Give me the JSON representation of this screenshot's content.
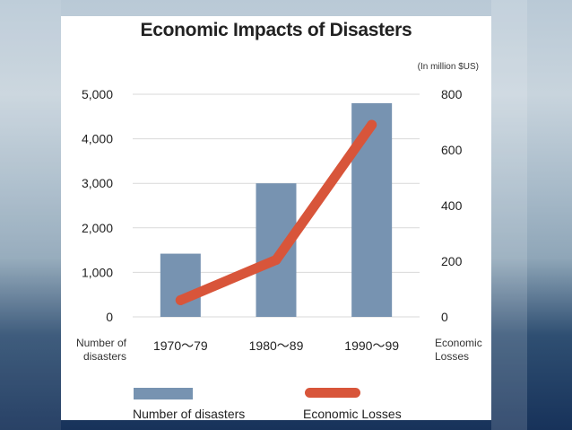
{
  "chart_data": {
    "type": "bar",
    "title": "Economic Impacts of Disasters",
    "unit_note": "(In million $US)",
    "categories": [
      "1970～79",
      "1980～89",
      "1990～99"
    ],
    "series": [
      {
        "name": "Number of disasters",
        "type": "bar",
        "axis": "left",
        "values": [
          1420,
          3000,
          4800
        ]
      },
      {
        "name": "Economic Losses",
        "type": "line",
        "axis": "right",
        "values": [
          60,
          205,
          690
        ]
      }
    ],
    "left_axis": {
      "title": "Number of disasters",
      "ylim": [
        0,
        5000
      ],
      "ticks": [
        0,
        1000,
        2000,
        3000,
        4000,
        5000
      ],
      "tick_labels": [
        "0",
        "1,000",
        "2,000",
        "3,000",
        "4,000",
        "5,000"
      ]
    },
    "right_axis": {
      "title": "Economic Losses",
      "ylim": [
        0,
        800
      ],
      "ticks": [
        0,
        200,
        400,
        600,
        800
      ],
      "tick_labels": [
        "0",
        "200",
        "400",
        "600",
        "800"
      ]
    },
    "grid": true,
    "legend_placement": "bottom",
    "colors": {
      "bar": "#7793b1",
      "line": "#d8553a",
      "grid": "#d9d9d9"
    }
  }
}
